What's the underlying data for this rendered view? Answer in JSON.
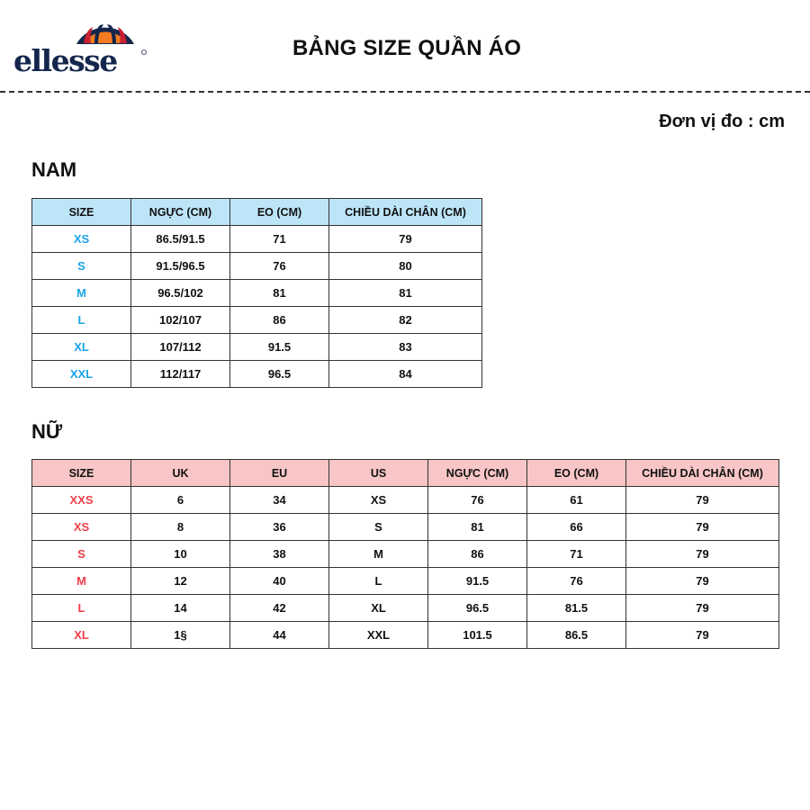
{
  "brand": {
    "logo_text": "ellesse",
    "colors": {
      "navy": "#14264b",
      "orange": "#f47b20",
      "red": "#c8202f"
    }
  },
  "title": "BẢNG SIZE QUẦN ÁO",
  "unit": "Đơn vị đo : cm",
  "nam": {
    "heading": "NAM",
    "header_color": "#bde5f8",
    "size_color": "#1aa3e8",
    "columns": [
      "SIZE",
      "NGỰC (CM)",
      "EO (CM)",
      "CHIỀU DÀI CHÂN (CM)"
    ],
    "rows": [
      [
        "XS",
        "86.5/91.5",
        "71",
        "79"
      ],
      [
        "S",
        "91.5/96.5",
        "76",
        "80"
      ],
      [
        "M",
        "96.5/102",
        "81",
        "81"
      ],
      [
        "L",
        "102/107",
        "86",
        "82"
      ],
      [
        "XL",
        "107/112",
        "91.5",
        "83"
      ],
      [
        "XXL",
        "112/117",
        "96.5",
        "84"
      ]
    ]
  },
  "nu": {
    "heading": "NỮ",
    "header_color": "#f8c6c6",
    "size_color": "#ee3e4a",
    "columns": [
      "SIZE",
      "UK",
      "EU",
      "US",
      "NGỰC (CM)",
      "EO (CM)",
      "CHIỀU DÀI CHÂN (CM)"
    ],
    "rows": [
      [
        "XXS",
        "6",
        "34",
        "XS",
        "76",
        "61",
        "79"
      ],
      [
        "XS",
        "8",
        "36",
        "S",
        "81",
        "66",
        "79"
      ],
      [
        "S",
        "10",
        "38",
        "M",
        "86",
        "71",
        "79"
      ],
      [
        "M",
        "12",
        "40",
        "L",
        "91.5",
        "76",
        "79"
      ],
      [
        "L",
        "14",
        "42",
        "XL",
        "96.5",
        "81.5",
        "79"
      ],
      [
        "XL",
        "1§",
        "44",
        "XXL",
        "101.5",
        "86.5",
        "79"
      ]
    ]
  }
}
